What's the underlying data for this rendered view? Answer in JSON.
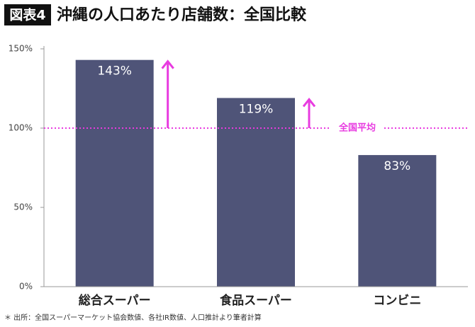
{
  "chart_data": {
    "type": "bar",
    "figure_label": "図表4",
    "title": "沖縄の人口あたり店舗数：全国比較",
    "categories": [
      "総合スーパー",
      "食品スーパー",
      "コンビニ"
    ],
    "values": [
      143,
      119,
      83
    ],
    "value_labels": [
      "143%",
      "119%",
      "83%"
    ],
    "color": "#4f5478",
    "ylim": [
      0,
      150
    ],
    "yticks": [
      {
        "value": 0,
        "label": "0%"
      },
      {
        "value": 50,
        "label": "50%"
      },
      {
        "value": 100,
        "label": "100%"
      },
      {
        "value": 150,
        "label": "150%"
      }
    ],
    "reference_line": {
      "value": 100,
      "label": "全国平均",
      "color": "#e83be0"
    },
    "note": "＊ 出所：全国スーパーマーケット協会数値、各社IR数値、人口推計より筆者計算"
  }
}
